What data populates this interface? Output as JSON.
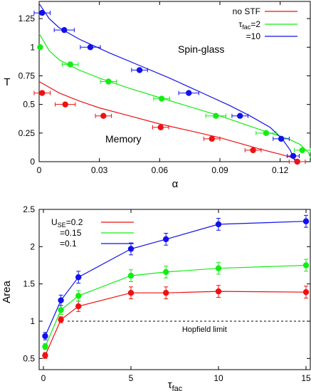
{
  "chart_data": [
    {
      "type": "line",
      "xlabel": "α",
      "ylabel": "T",
      "xlim": [
        0,
        0.135
      ],
      "ylim": [
        0,
        1.4
      ],
      "x_ticks": [
        "0",
        "0.03",
        "0.06",
        "0.09",
        "0.12"
      ],
      "x_tick_values": [
        0,
        0.03,
        0.06,
        0.09,
        0.12
      ],
      "y_ticks": [
        "0",
        "0.25",
        "0.5",
        "0.75",
        "1",
        "1.25"
      ],
      "y_tick_values": [
        0,
        0.25,
        0.5,
        0.75,
        1,
        1.25
      ],
      "legend_placement": "top-right",
      "legend": [
        "no STF",
        "τfac=2",
        "=10"
      ],
      "annotations": [
        "Spin-glass",
        "Memory"
      ],
      "series": [
        {
          "name": "no STF",
          "color": "#ee1111",
          "points": [
            {
              "x": 0.0015,
              "y": 0.6,
              "xerr": 0.004
            },
            {
              "x": 0.013,
              "y": 0.5,
              "xerr": 0.005
            },
            {
              "x": 0.032,
              "y": 0.4,
              "xerr": 0.004
            },
            {
              "x": 0.0605,
              "y": 0.3,
              "xerr": 0.004
            },
            {
              "x": 0.086,
              "y": 0.2,
              "xerr": 0.004
            },
            {
              "x": 0.1065,
              "y": 0.1,
              "xerr": 0.004
            },
            {
              "x": 0.1285,
              "y": 0.0,
              "xerr": 0.004
            }
          ],
          "curve": [
            [
              0,
              0.7
            ],
            [
              0.01,
              0.6
            ],
            [
              0.02,
              0.53
            ],
            [
              0.03,
              0.47
            ],
            [
              0.045,
              0.4
            ],
            [
              0.06,
              0.33
            ],
            [
              0.075,
              0.27
            ],
            [
              0.09,
              0.21
            ],
            [
              0.1,
              0.16
            ],
            [
              0.11,
              0.11
            ],
            [
              0.12,
              0.065
            ],
            [
              0.125,
              0.04
            ],
            [
              0.13,
              0.0
            ]
          ]
        },
        {
          "name": "τfac=2",
          "color": "#11ee11",
          "points": [
            {
              "x": 0.0005,
              "y": 1.0,
              "xerr": 0.0
            },
            {
              "x": 0.0155,
              "y": 0.85,
              "xerr": 0.004
            },
            {
              "x": 0.0345,
              "y": 0.7,
              "xerr": 0.004
            },
            {
              "x": 0.061,
              "y": 0.55,
              "xerr": 0.004
            },
            {
              "x": 0.088,
              "y": 0.4,
              "xerr": 0.005
            },
            {
              "x": 0.113,
              "y": 0.25,
              "xerr": 0.005
            },
            {
              "x": 0.131,
              "y": 0.1,
              "xerr": 0.004
            }
          ],
          "curve": [
            [
              0,
              1.12
            ],
            [
              0.005,
              0.97
            ],
            [
              0.01,
              0.89
            ],
            [
              0.02,
              0.8
            ],
            [
              0.03,
              0.73
            ],
            [
              0.045,
              0.64
            ],
            [
              0.06,
              0.56
            ],
            [
              0.075,
              0.48
            ],
            [
              0.09,
              0.4
            ],
            [
              0.105,
              0.31
            ],
            [
              0.115,
              0.25
            ],
            [
              0.124,
              0.2
            ],
            [
              0.13,
              0.15
            ],
            [
              0.134,
              0.08
            ],
            [
              0.136,
              0.0
            ]
          ]
        },
        {
          "name": "=10",
          "color": "#1111ee",
          "points": [
            {
              "x": 0.0015,
              "y": 1.3,
              "xerr": 0.004
            },
            {
              "x": 0.0125,
              "y": 1.15,
              "xerr": 0.005
            },
            {
              "x": 0.0255,
              "y": 1.0,
              "xerr": 0.005
            },
            {
              "x": 0.05,
              "y": 0.8,
              "xerr": 0.004
            },
            {
              "x": 0.0745,
              "y": 0.6,
              "xerr": 0.005
            },
            {
              "x": 0.1,
              "y": 0.4,
              "xerr": 0.004
            },
            {
              "x": 0.1205,
              "y": 0.2,
              "xerr": 0.004
            },
            {
              "x": 0.1265,
              "y": 0.05,
              "xerr": 0.003
            }
          ],
          "curve": [
            [
              0.0,
              1.38
            ],
            [
              0.005,
              1.25
            ],
            [
              0.01,
              1.17
            ],
            [
              0.02,
              1.07
            ],
            [
              0.035,
              0.95
            ],
            [
              0.05,
              0.84
            ],
            [
              0.065,
              0.73
            ],
            [
              0.08,
              0.61
            ],
            [
              0.095,
              0.49
            ],
            [
              0.105,
              0.4
            ],
            [
              0.115,
              0.3
            ],
            [
              0.121,
              0.2
            ],
            [
              0.125,
              0.1
            ],
            [
              0.1275,
              0.0
            ]
          ]
        }
      ]
    },
    {
      "type": "line",
      "xlabel": "τfac",
      "ylabel": "Area",
      "xlim": [
        0,
        15
      ],
      "ylim": [
        0.35,
        2.5
      ],
      "x_ticks": [
        "0",
        "5",
        "10",
        "15"
      ],
      "x_tick_values": [
        0,
        5,
        10,
        15
      ],
      "y_ticks": [
        "0.5",
        "1",
        "1.5",
        "2",
        "2.5"
      ],
      "y_tick_values": [
        0.5,
        1,
        1.5,
        2,
        2.5
      ],
      "legend_placement": "top-left",
      "legend": [
        "USE=0.2",
        "=0.15",
        "=0.1"
      ],
      "annotations": [
        "Hopfield limit"
      ],
      "reference_line": {
        "y": 1.0,
        "style": "dashed"
      },
      "x": [
        0.1,
        1,
        2,
        5,
        7,
        10,
        15
      ],
      "series": [
        {
          "name": "USE=0.2",
          "color": "#ee1111",
          "values": [
            0.54,
            1.02,
            1.2,
            1.38,
            1.38,
            1.4,
            1.39
          ],
          "errors": [
            0.04,
            0.04,
            0.07,
            0.08,
            0.08,
            0.08,
            0.08
          ]
        },
        {
          "name": "=0.15",
          "color": "#11ee11",
          "values": [
            0.66,
            1.15,
            1.34,
            1.61,
            1.66,
            1.71,
            1.75
          ],
          "errors": [
            0.04,
            0.06,
            0.07,
            0.08,
            0.08,
            0.08,
            0.08
          ]
        },
        {
          "name": "=0.1",
          "color": "#1111ee",
          "values": [
            0.8,
            1.28,
            1.59,
            1.97,
            2.1,
            2.3,
            2.34
          ],
          "errors": [
            0.05,
            0.07,
            0.08,
            0.08,
            0.08,
            0.08,
            0.08
          ]
        }
      ]
    }
  ]
}
